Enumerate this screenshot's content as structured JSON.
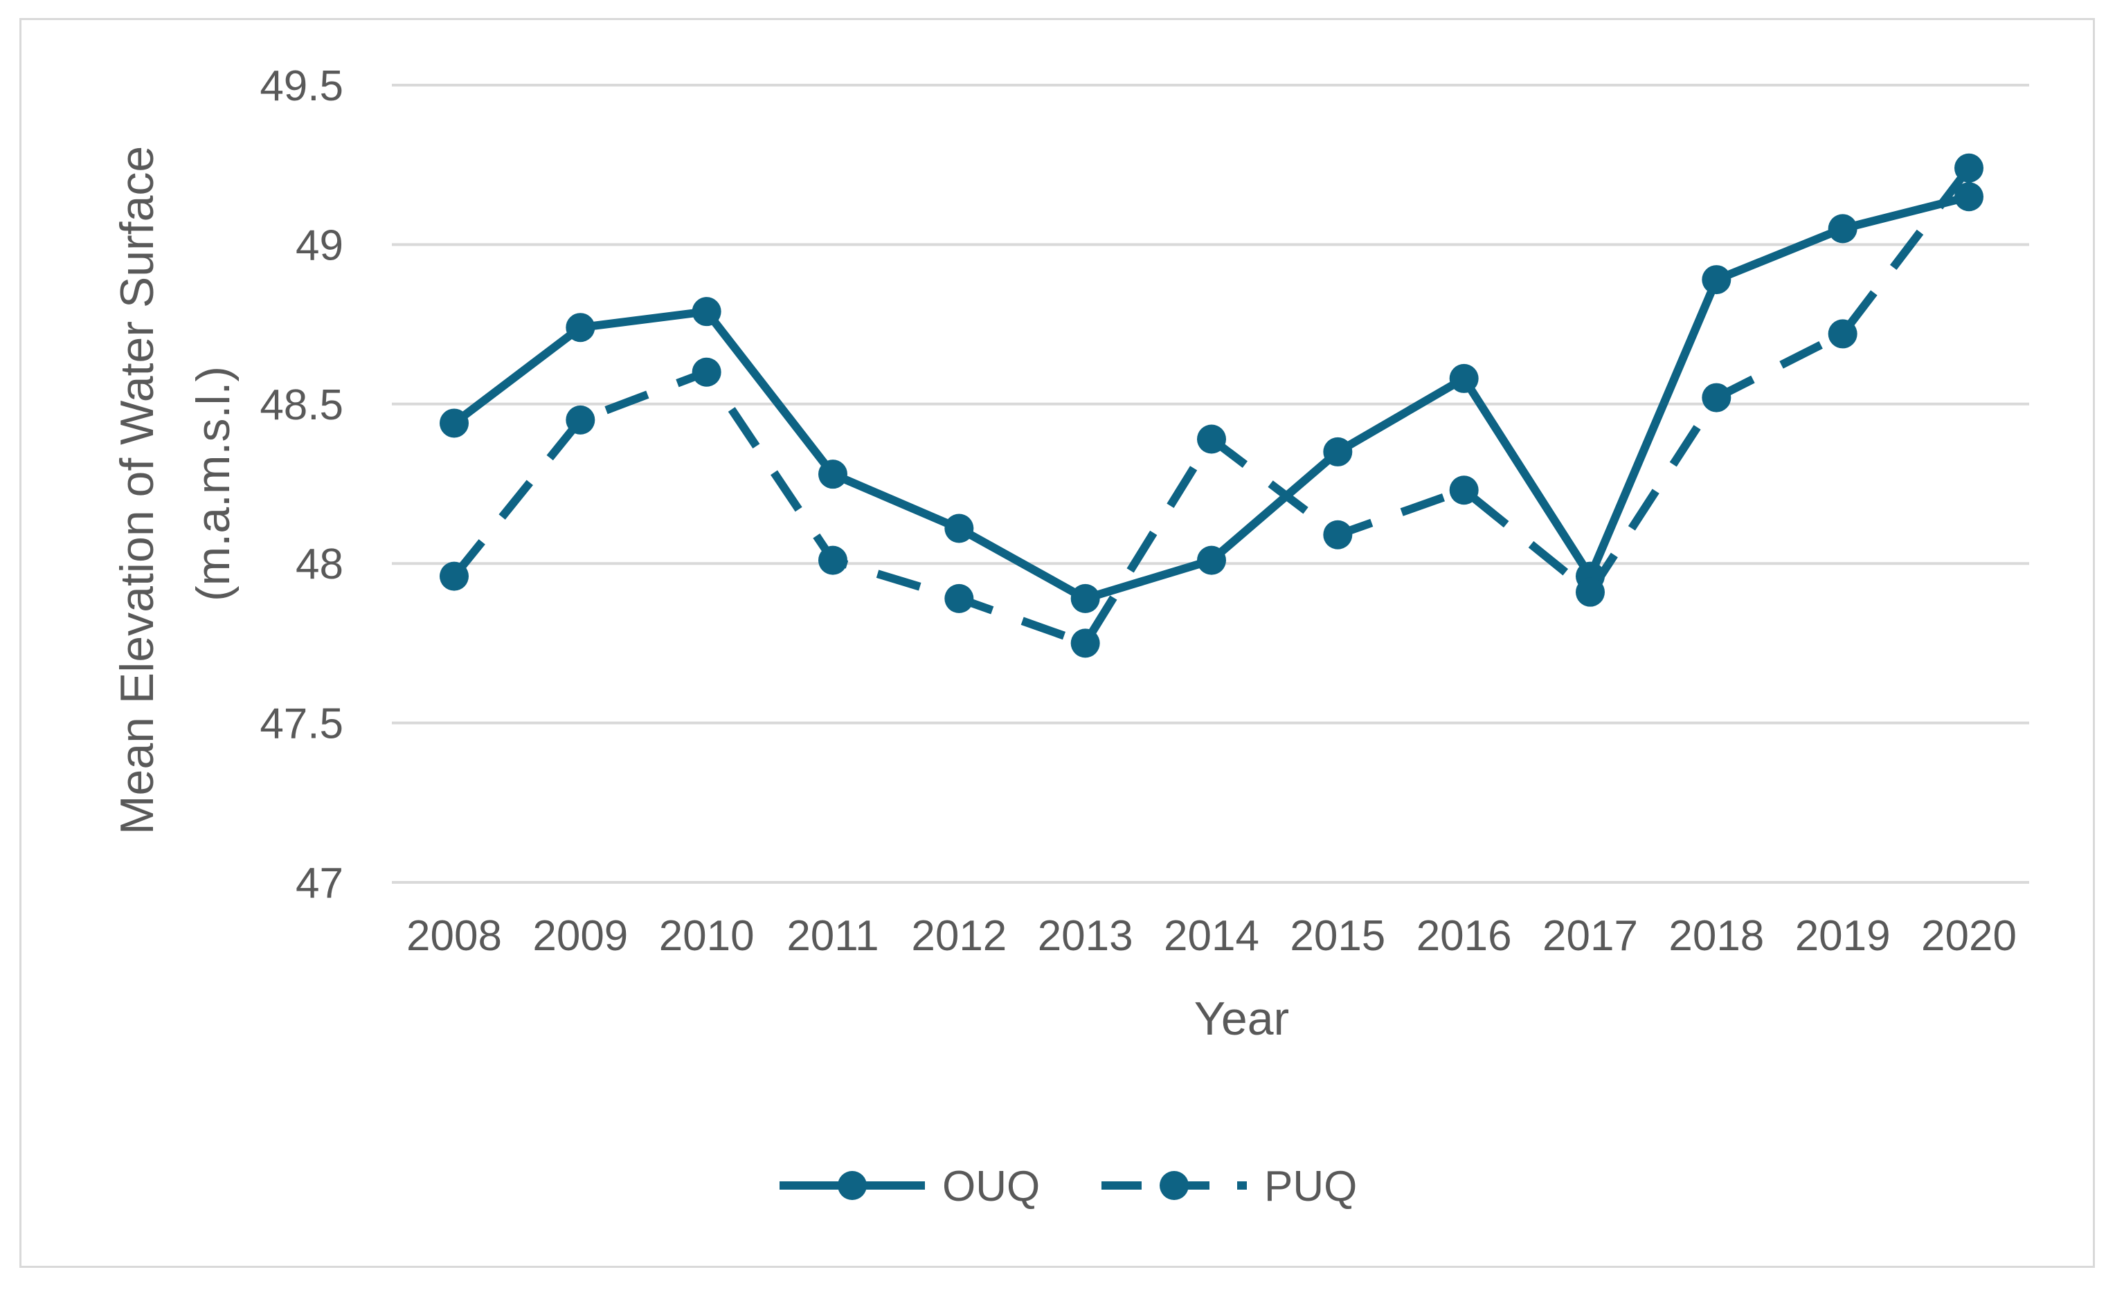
{
  "chart_data": {
    "type": "line",
    "title": "",
    "xlabel": "Year",
    "ylabel_lines": [
      "Mean Elevation of Water Surface",
      "(m.a.m.s.l.)"
    ],
    "categories": [
      "2008",
      "2009",
      "2010",
      "2011",
      "2012",
      "2013",
      "2014",
      "2015",
      "2016",
      "2017",
      "2018",
      "2019",
      "2020"
    ],
    "ylim": [
      47,
      49.5
    ],
    "yticks": [
      47,
      47.5,
      48,
      48.5,
      49,
      49.5
    ],
    "ytick_labels": [
      "47",
      "47.5",
      "48",
      "48.5",
      "49",
      "49.5"
    ],
    "grid": true,
    "legend_position": "bottom",
    "series": [
      {
        "name": "OUQ",
        "style": "solid",
        "values": [
          48.44,
          48.74,
          48.79,
          48.28,
          48.11,
          47.89,
          48.01,
          48.35,
          48.58,
          47.96,
          48.89,
          49.05,
          49.15
        ]
      },
      {
        "name": "PUQ",
        "style": "dashed",
        "values": [
          47.96,
          48.45,
          48.6,
          48.01,
          47.89,
          47.75,
          48.39,
          48.09,
          48.23,
          47.91,
          48.52,
          48.72,
          49.24
        ]
      }
    ],
    "colors": {
      "series": "#0e6384",
      "grid": "#d9d9d9",
      "text": "#595959",
      "border": "#d9d9d9"
    }
  }
}
